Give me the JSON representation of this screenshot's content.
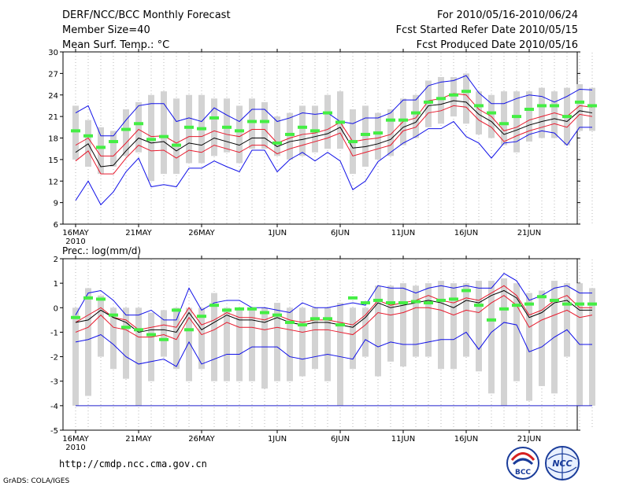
{
  "header": {
    "title": "DERF/NCC/BCC Monthly Forecast",
    "member_size": "Member Size=40",
    "variable": "Mean Surf. Temp.: °C",
    "period": "For 2010/05/16-2010/06/24",
    "started": "Fcst Started Refer Date 2010/05/15",
    "produced": "Fcst Produced Date 2010/05/16"
  },
  "footer": {
    "url": "http://cmdp.ncc.cma.gov.cn",
    "grads": "GrADS: COLA/IGES",
    "logo_left": "BCC",
    "logo_right": "NCC"
  },
  "colors": {
    "box": "#d3d3d3",
    "mean": "#000000",
    "inner": "#e8192c",
    "outer": "#1010e8",
    "marker": "#44ee44"
  },
  "chart_data": [
    {
      "type": "line",
      "title": "Mean Surf. Temp.: °C",
      "x_ticks": [
        "16MAY\n2010",
        "21MAY",
        "26MAY",
        "1JUN",
        "6JUN",
        "11JUN",
        "16JUN",
        "21JUN"
      ],
      "x_tick_days": [
        0,
        5,
        10,
        16,
        21,
        26,
        31,
        36
      ],
      "ylim": [
        6,
        30
      ],
      "y_ticks": [
        6,
        9,
        12,
        15,
        18,
        21,
        24,
        27,
        30
      ],
      "series": [
        {
          "name": "max",
          "values": [
            21.5,
            22.5,
            18.3,
            18.3,
            20.5,
            22.5,
            22.8,
            22.8,
            20.3,
            20.8,
            20.3,
            22.2,
            21.2,
            20.3,
            22.0,
            22.0,
            20.3,
            20.8,
            21.5,
            21.3,
            21.5,
            20.3,
            20.0,
            20.8,
            20.8,
            21.5,
            23.3,
            23.3,
            25.3,
            25.8,
            26.0,
            26.7,
            24.3,
            22.8,
            22.8,
            23.5,
            24.0,
            23.8,
            23.0,
            23.8,
            24.8,
            24.7
          ]
        },
        {
          "name": "p75",
          "values": [
            17.0,
            18.0,
            15.5,
            15.5,
            17.3,
            19.2,
            18.2,
            18.3,
            17.3,
            18.2,
            18.2,
            19.0,
            18.5,
            18.2,
            19.2,
            19.2,
            17.3,
            18.0,
            18.5,
            18.7,
            19.2,
            20.2,
            17.5,
            17.8,
            18.0,
            18.5,
            20.3,
            20.8,
            23.2,
            23.5,
            24.2,
            24.0,
            22.0,
            21.0,
            19.0,
            19.5,
            20.5,
            21.0,
            21.5,
            21.0,
            22.5,
            22.3
          ]
        },
        {
          "name": "mean",
          "values": [
            16.0,
            17.2,
            14.0,
            14.2,
            16.2,
            18.0,
            17.3,
            17.5,
            16.2,
            17.3,
            17.0,
            18.0,
            17.5,
            17.0,
            18.0,
            18.0,
            16.8,
            17.5,
            17.8,
            18.2,
            18.6,
            19.5,
            16.6,
            16.8,
            17.2,
            17.8,
            19.5,
            20.2,
            22.5,
            22.7,
            23.2,
            23.0,
            21.3,
            20.3,
            18.5,
            19.1,
            19.8,
            20.3,
            20.7,
            20.3,
            21.8,
            21.5
          ]
        },
        {
          "name": "p25",
          "values": [
            14.8,
            16.2,
            13.0,
            13.0,
            15.2,
            17.0,
            16.2,
            16.3,
            15.2,
            16.3,
            16.0,
            17.0,
            16.5,
            16.0,
            17.0,
            17.0,
            15.8,
            16.5,
            17.0,
            17.5,
            18.0,
            18.7,
            15.5,
            16.0,
            16.5,
            17.0,
            19.0,
            19.5,
            21.5,
            21.8,
            22.5,
            22.3,
            20.5,
            19.5,
            17.5,
            18.3,
            19.0,
            19.5,
            20.0,
            19.5,
            21.3,
            21.0
          ]
        },
        {
          "name": "min",
          "values": [
            9.3,
            12.0,
            8.7,
            10.5,
            13.3,
            15.2,
            11.2,
            11.5,
            11.2,
            13.8,
            13.8,
            14.8,
            14.0,
            13.3,
            16.3,
            16.3,
            13.3,
            15.0,
            16.0,
            14.8,
            16.0,
            14.8,
            10.8,
            12.0,
            14.7,
            16.0,
            17.3,
            18.2,
            19.3,
            19.3,
            20.3,
            18.2,
            17.3,
            15.2,
            17.3,
            17.5,
            18.5,
            19.0,
            18.7,
            17.0,
            19.5,
            19.5
          ]
        }
      ],
      "box_low": [
        15.0,
        14.0,
        13.0,
        14.0,
        15.5,
        16.0,
        12.0,
        13.0,
        13.0,
        14.5,
        14.5,
        15.5,
        16.0,
        14.5,
        16.5,
        16.5,
        15.5,
        15.0,
        15.5,
        16.0,
        16.5,
        16.5,
        13.0,
        14.0,
        15.0,
        15.5,
        17.0,
        18.0,
        19.5,
        20.0,
        21.0,
        20.0,
        18.5,
        18.0,
        17.0,
        16.0,
        17.5,
        18.0,
        18.0,
        17.0,
        19.0,
        19.0
      ],
      "box_high": [
        22.5,
        20.5,
        19.5,
        19.0,
        22.0,
        23.0,
        24.0,
        24.5,
        23.5,
        24.0,
        24.0,
        23.5,
        23.5,
        22.5,
        23.5,
        23.0,
        21.0,
        21.5,
        22.5,
        22.5,
        24.0,
        24.5,
        22.0,
        22.5,
        21.5,
        22.0,
        23.5,
        24.0,
        26.0,
        26.5,
        26.5,
        27.0,
        24.5,
        24.0,
        24.5,
        24.5,
        24.5,
        25.0,
        24.5,
        25.0,
        25.5,
        25.0
      ],
      "markers": [
        19.0,
        18.3,
        16.7,
        17.5,
        19.2,
        20.0,
        17.8,
        18.2,
        17.0,
        19.5,
        19.3,
        20.8,
        19.5,
        19.0,
        20.3,
        20.3,
        17.3,
        18.5,
        19.5,
        19.0,
        21.5,
        20.2,
        17.5,
        18.5,
        18.7,
        20.5,
        20.5,
        21.5,
        23.0,
        23.5,
        24.0,
        24.5,
        22.5,
        21.5,
        20.0,
        21.0,
        22.0,
        22.5,
        22.5,
        21.0,
        23.0,
        22.5
      ]
    },
    {
      "type": "line",
      "title": "Prec.: log(mm/d)",
      "x_ticks": [
        "16MAY\n2010",
        "21MAY",
        "26MAY",
        "1JUN",
        "6JUN",
        "11JUN",
        "16JUN",
        "21JUN"
      ],
      "x_tick_days": [
        0,
        5,
        10,
        16,
        21,
        26,
        31,
        36
      ],
      "ylim": [
        -5,
        2
      ],
      "y_ticks": [
        -5,
        -4,
        -3,
        -2,
        -1,
        0,
        1,
        2
      ],
      "series": [
        {
          "name": "max",
          "values": [
            -0.3,
            0.6,
            0.7,
            0.3,
            -0.3,
            -0.3,
            -0.1,
            -0.5,
            -0.5,
            0.8,
            -0.1,
            0.2,
            0.3,
            0.3,
            0.0,
            0.0,
            -0.1,
            -0.2,
            0.2,
            0.0,
            0.0,
            0.1,
            0.2,
            0.1,
            0.9,
            0.8,
            0.8,
            0.6,
            0.8,
            0.9,
            0.8,
            0.9,
            0.8,
            0.8,
            1.4,
            1.1,
            0.3,
            0.5,
            0.8,
            0.9,
            0.6,
            0.6
          ]
        },
        {
          "name": "p75",
          "values": [
            -0.6,
            -0.3,
            0.0,
            -0.4,
            -0.5,
            -0.9,
            -0.8,
            -0.7,
            -0.8,
            0.0,
            -0.7,
            -0.5,
            -0.2,
            -0.4,
            -0.4,
            -0.5,
            -0.3,
            -0.5,
            -0.6,
            -0.5,
            -0.5,
            -0.6,
            -0.7,
            -0.3,
            0.3,
            0.1,
            0.2,
            0.3,
            0.5,
            0.3,
            0.2,
            0.4,
            0.3,
            0.6,
            0.9,
            0.5,
            -0.3,
            -0.1,
            0.3,
            0.5,
            0.0,
            0.0
          ]
        },
        {
          "name": "mean",
          "values": [
            -0.6,
            -0.5,
            -0.1,
            -0.4,
            -0.6,
            -1.0,
            -0.9,
            -0.9,
            -1.0,
            -0.2,
            -0.9,
            -0.6,
            -0.3,
            -0.5,
            -0.5,
            -0.6,
            -0.4,
            -0.6,
            -0.7,
            -0.6,
            -0.6,
            -0.7,
            -0.8,
            -0.4,
            0.2,
            0.0,
            0.1,
            0.2,
            0.3,
            0.2,
            0.0,
            0.3,
            0.2,
            0.5,
            0.7,
            0.4,
            -0.4,
            -0.2,
            0.2,
            0.3,
            -0.1,
            -0.1
          ]
        },
        {
          "name": "p25",
          "values": [
            -1.0,
            -0.8,
            -0.3,
            -0.8,
            -0.9,
            -1.2,
            -1.2,
            -1.1,
            -1.3,
            -0.4,
            -1.1,
            -0.9,
            -0.6,
            -0.8,
            -0.8,
            -0.9,
            -0.8,
            -0.9,
            -1.0,
            -0.9,
            -0.9,
            -1.0,
            -1.1,
            -0.7,
            -0.2,
            -0.3,
            -0.2,
            0.0,
            0.0,
            -0.1,
            -0.3,
            -0.1,
            -0.2,
            0.2,
            0.5,
            0.1,
            -0.8,
            -0.5,
            -0.3,
            -0.1,
            -0.4,
            -0.3
          ]
        },
        {
          "name": "min",
          "values": [
            -1.4,
            -1.3,
            -1.1,
            -1.5,
            -2.0,
            -2.3,
            -2.2,
            -2.1,
            -2.4,
            -1.4,
            -2.3,
            -2.1,
            -1.9,
            -1.9,
            -1.6,
            -1.6,
            -1.6,
            -2.0,
            -2.1,
            -2.0,
            -1.9,
            -2.0,
            -2.1,
            -1.3,
            -1.6,
            -1.4,
            -1.5,
            -1.5,
            -1.4,
            -1.3,
            -1.3,
            -1.0,
            -1.7,
            -1.0,
            -0.6,
            -0.7,
            -1.8,
            -1.6,
            -1.2,
            -0.9,
            -1.5,
            -1.5
          ]
        }
      ],
      "box_low": [
        -4.0,
        -3.6,
        -2.0,
        -2.5,
        -2.9,
        -4.0,
        -3.0,
        -2.0,
        -2.5,
        -3.0,
        -2.5,
        -3.0,
        -3.0,
        -3.0,
        -3.0,
        -3.3,
        -3.0,
        -3.0,
        -2.8,
        -2.5,
        -3.0,
        -4.0,
        -2.5,
        -2.0,
        -2.8,
        -2.2,
        -2.4,
        -2.0,
        -2.0,
        -2.5,
        -2.5,
        -2.0,
        -2.6,
        -3.5,
        -4.0,
        -3.0,
        -3.8,
        -3.2,
        -3.5,
        -2.0,
        -4.0,
        -4.0
      ],
      "box_high": [
        0.0,
        0.8,
        0.5,
        0.0,
        0.0,
        0.0,
        -0.2,
        -0.1,
        0.0,
        0.0,
        0.0,
        0.6,
        0.0,
        0.0,
        0.0,
        0.0,
        0.2,
        0.0,
        0.0,
        0.0,
        0.0,
        0.2,
        0.0,
        0.0,
        0.9,
        0.9,
        1.0,
        0.9,
        1.0,
        1.1,
        1.0,
        1.0,
        1.1,
        1.1,
        1.2,
        1.0,
        0.6,
        0.7,
        1.1,
        1.0,
        1.0,
        0.8
      ],
      "markers": [
        -0.4,
        0.4,
        0.35,
        -0.3,
        -0.8,
        -0.9,
        -1.1,
        -1.3,
        -0.1,
        -0.9,
        -0.35,
        0.1,
        -0.1,
        -0.05,
        -0.05,
        -0.2,
        -0.3,
        -0.6,
        -0.7,
        -0.45,
        -0.45,
        -0.7,
        0.4,
        0.2,
        0.3,
        0.2,
        0.2,
        0.25,
        0.2,
        0.3,
        0.35,
        0.7,
        0.1,
        -0.5,
        -0.05,
        0.1,
        0.15,
        0.45,
        0.3,
        0.15,
        0.15,
        0.15
      ],
      "floor": -4
    }
  ]
}
